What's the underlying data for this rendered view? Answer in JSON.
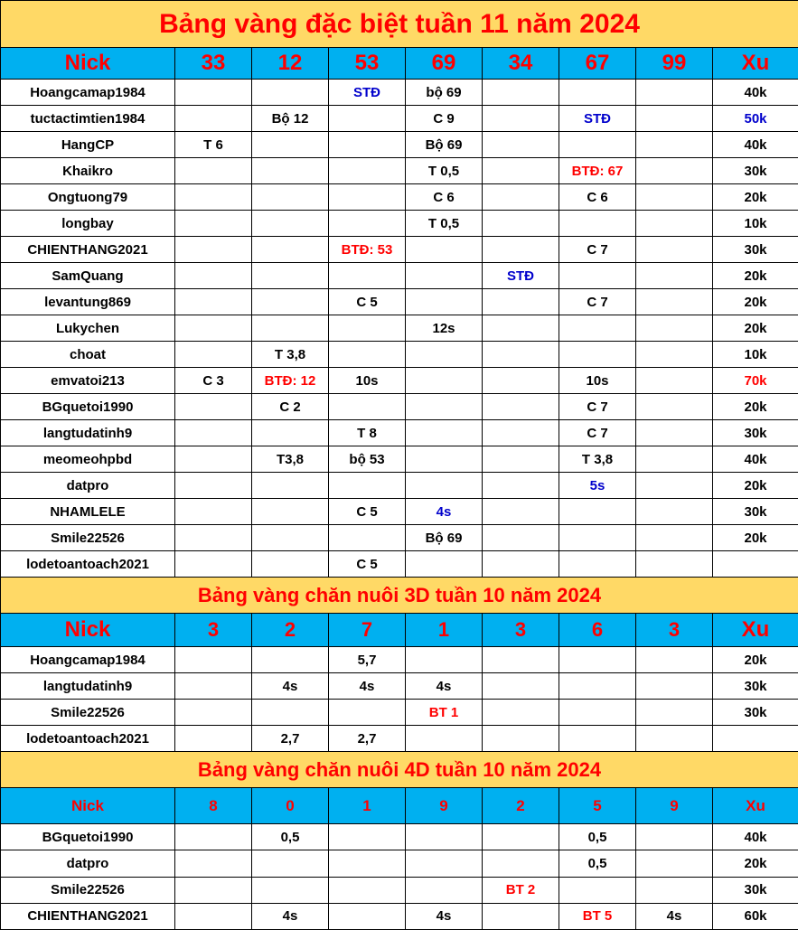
{
  "colors": {
    "title_bg": "#FFD966",
    "header_bg": "#00B0F0",
    "accent_red": "#FF0000",
    "accent_blue": "#0000CC"
  },
  "sections": [
    {
      "title": "Bảng vàng đặc biệt tuần 11 năm 2024",
      "headers": [
        "Nick",
        "33",
        "12",
        "53",
        "69",
        "34",
        "67",
        "99",
        "Xu"
      ],
      "rows": [
        [
          "Hoangcamap1984",
          "",
          "",
          {
            "v": "STĐ",
            "c": "blue"
          },
          "bộ 69",
          "",
          "",
          "",
          "40k"
        ],
        [
          "tuctactimtien1984",
          "",
          "Bộ 12",
          "",
          "C 9",
          "",
          {
            "v": "STĐ",
            "c": "blue"
          },
          "",
          {
            "v": "50k",
            "c": "blue"
          }
        ],
        [
          "HangCP",
          "T 6",
          "",
          "",
          "Bộ 69",
          "",
          "",
          "",
          "40k"
        ],
        [
          "Khaikro",
          "",
          "",
          "",
          "T 0,5",
          "",
          {
            "v": "BTĐ: 67",
            "c": "red"
          },
          "",
          "30k"
        ],
        [
          "Ongtuong79",
          "",
          "",
          "",
          "C 6",
          "",
          "C 6",
          "",
          "20k"
        ],
        [
          "longbay",
          "",
          "",
          "",
          "T 0,5",
          "",
          "",
          "",
          "10k"
        ],
        [
          "CHIENTHANG2021",
          "",
          "",
          {
            "v": "BTĐ: 53",
            "c": "red"
          },
          "",
          "",
          "C 7",
          "",
          "30k"
        ],
        [
          "SamQuang",
          "",
          "",
          "",
          "",
          {
            "v": "STĐ",
            "c": "blue"
          },
          "",
          "",
          "20k"
        ],
        [
          "levantung869",
          "",
          "",
          "C 5",
          "",
          "",
          "C 7",
          "",
          "20k"
        ],
        [
          "Lukychen",
          "",
          "",
          "",
          "12s",
          "",
          "",
          "",
          "20k"
        ],
        [
          "choat",
          "",
          "T 3,8",
          "",
          "",
          "",
          "",
          "",
          "10k"
        ],
        [
          "emvatoi213",
          "C 3",
          {
            "v": "BTĐ: 12",
            "c": "red"
          },
          "10s",
          "",
          "",
          "10s",
          "",
          {
            "v": "70k",
            "c": "red"
          }
        ],
        [
          "BGquetoi1990",
          "",
          "C 2",
          "",
          "",
          "",
          "C 7",
          "",
          "20k"
        ],
        [
          "langtudatinh9",
          "",
          "",
          "T 8",
          "",
          "",
          "C 7",
          "",
          "30k"
        ],
        [
          "meomeohpbd",
          "",
          "T3,8",
          "bộ 53",
          "",
          "",
          "T 3,8",
          "",
          "40k"
        ],
        [
          "datpro",
          "",
          "",
          "",
          "",
          "",
          {
            "v": "5s",
            "c": "blue"
          },
          "",
          "20k"
        ],
        [
          "NHAMLELE",
          "",
          "",
          "C 5",
          {
            "v": "4s",
            "c": "blue"
          },
          "",
          "",
          "",
          "30k"
        ],
        [
          "Smile22526",
          "",
          "",
          "",
          "Bộ 69",
          "",
          "",
          "",
          "20k"
        ],
        [
          "lodetoantoach2021",
          "",
          "",
          "C 5",
          "",
          "",
          "",
          "",
          ""
        ]
      ]
    },
    {
      "title": "Bảng vàng chăn nuôi 3D tuần 10 năm 2024",
      "headers": [
        "Nick",
        "3",
        "2",
        "7",
        "1",
        "3",
        "6",
        "3",
        "Xu"
      ],
      "rows": [
        [
          "Hoangcamap1984",
          "",
          "",
          "5,7",
          "",
          "",
          "",
          "",
          "20k"
        ],
        [
          "langtudatinh9",
          "",
          "4s",
          "4s",
          "4s",
          "",
          "",
          "",
          "30k"
        ],
        [
          "Smile22526",
          "",
          "",
          "",
          {
            "v": "BT 1",
            "c": "red"
          },
          "",
          "",
          "",
          "30k"
        ],
        [
          "lodetoantoach2021",
          "",
          "2,7",
          "2,7",
          "",
          "",
          "",
          "",
          ""
        ]
      ]
    },
    {
      "title": "Bảng vàng chăn nuôi 4D tuần 10 năm 2024",
      "headers": [
        "Nick",
        "8",
        "0",
        "1",
        "9",
        "2",
        "5",
        "9",
        "Xu"
      ],
      "rows": [
        [
          "BGquetoi1990",
          "",
          "0,5",
          "",
          "",
          "",
          "0,5",
          "",
          "40k"
        ],
        [
          "datpro",
          "",
          "",
          "",
          "",
          "",
          "0,5",
          "",
          "20k"
        ],
        [
          "Smile22526",
          "",
          "",
          "",
          "",
          {
            "v": "BT 2",
            "c": "red"
          },
          "",
          "",
          "30k"
        ],
        [
          "CHIENTHANG2021",
          "",
          "4s",
          "",
          "4s",
          "",
          {
            "v": "BT 5",
            "c": "red"
          },
          "4s",
          "60k"
        ]
      ]
    }
  ]
}
